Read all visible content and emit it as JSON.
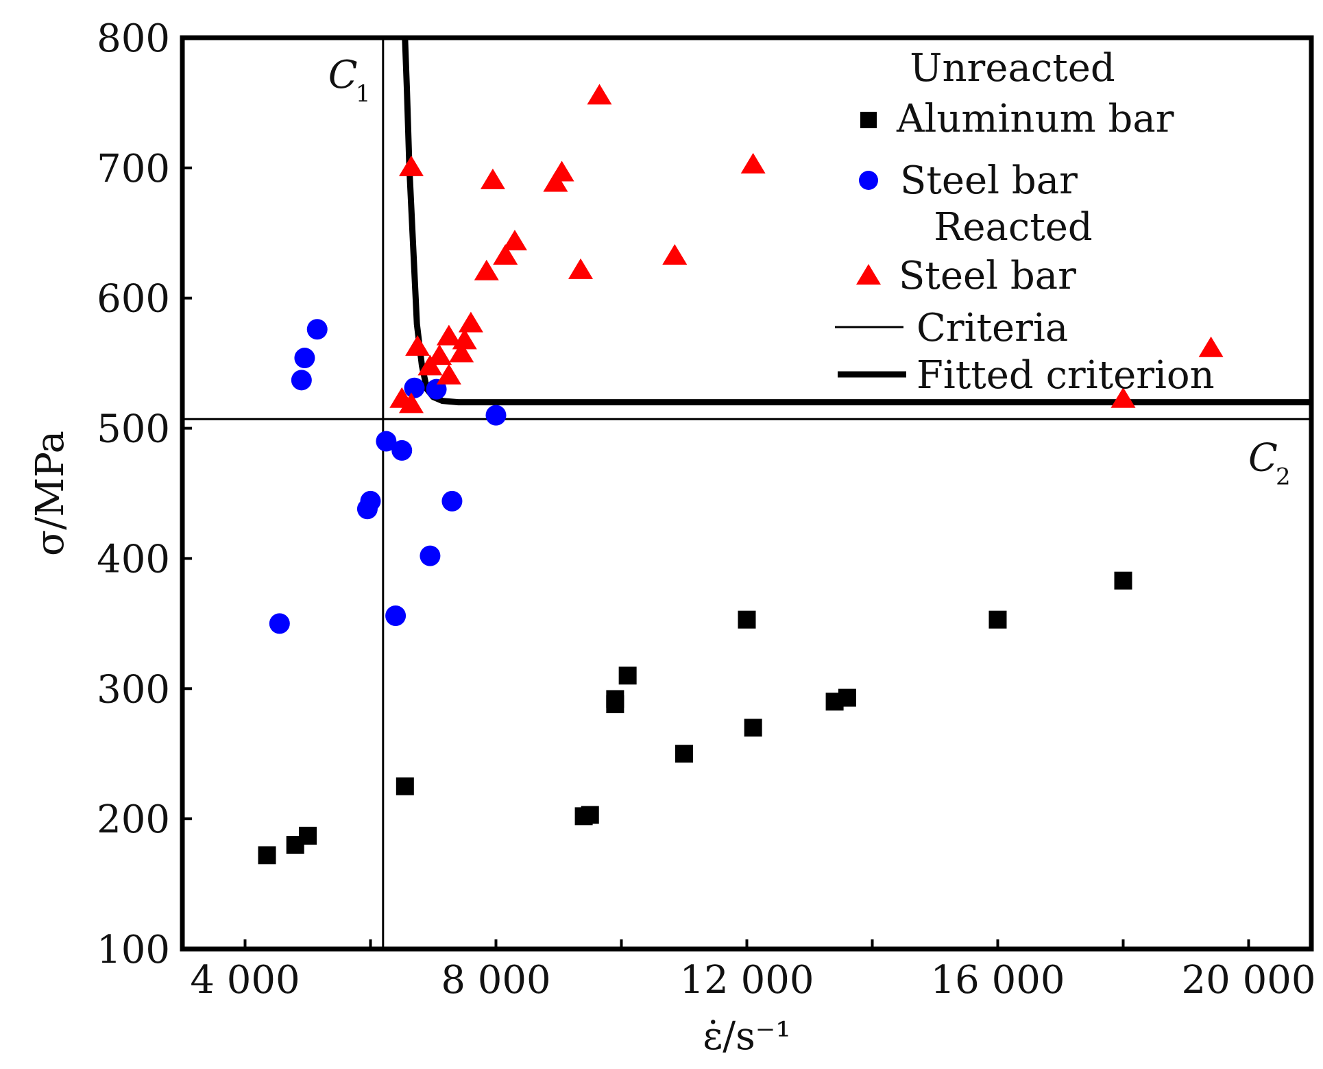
{
  "chart_data": {
    "type": "scatter",
    "xlabel": "ε̇/s⁻¹",
    "ylabel": "σ/MPa",
    "xlim": [
      3000,
      21000
    ],
    "ylim": [
      100,
      800
    ],
    "xticks": [
      4000,
      6000,
      8000,
      10000,
      12000,
      14000,
      16000,
      18000,
      20000
    ],
    "xtick_labels": [
      "4 000",
      "",
      "8 000",
      "",
      "12 000",
      "",
      "16 000",
      "",
      "20 000"
    ],
    "yticks": [
      100,
      200,
      300,
      400,
      500,
      600,
      700,
      800
    ],
    "ytick_labels": [
      "100",
      "200",
      "300",
      "400",
      "500",
      "600",
      "700",
      "800"
    ],
    "grid": false,
    "legend": {
      "position": "top-right",
      "group1_title": "Unreacted",
      "group2_title": "Reacted",
      "aluminum_label": "Aluminum bar",
      "steel_unreacted_label": "Steel bar",
      "steel_reacted_label": "Steel bar",
      "criteria_label": "Criteria",
      "fitted_label": "Fitted criterion"
    },
    "series": [
      {
        "name": "Aluminum bar",
        "group": "Unreacted",
        "marker": "square",
        "color": "#000000",
        "points": [
          [
            4350,
            172
          ],
          [
            4800,
            180
          ],
          [
            5000,
            187
          ],
          [
            6550,
            225
          ],
          [
            9400,
            202
          ],
          [
            9500,
            203
          ],
          [
            9900,
            288
          ],
          [
            9900,
            292
          ],
          [
            10100,
            310
          ],
          [
            11000,
            250
          ],
          [
            12000,
            353
          ],
          [
            12100,
            270
          ],
          [
            13400,
            290
          ],
          [
            13600,
            293
          ],
          [
            16000,
            353
          ],
          [
            18000,
            383
          ]
        ]
      },
      {
        "name": "Steel bar",
        "group": "Unreacted",
        "marker": "circle",
        "color": "#0000ff",
        "points": [
          [
            4550,
            350
          ],
          [
            4900,
            537
          ],
          [
            4950,
            554
          ],
          [
            5150,
            576
          ],
          [
            5950,
            438
          ],
          [
            6000,
            444
          ],
          [
            6250,
            490
          ],
          [
            6400,
            356
          ],
          [
            6500,
            483
          ],
          [
            6700,
            531
          ],
          [
            6950,
            402
          ],
          [
            7050,
            530
          ],
          [
            7300,
            444
          ],
          [
            8000,
            510
          ]
        ]
      },
      {
        "name": "Steel bar",
        "group": "Reacted",
        "marker": "triangle",
        "color": "#ff0000",
        "points": [
          [
            6650,
            700
          ],
          [
            6500,
            522
          ],
          [
            6650,
            518
          ],
          [
            6750,
            562
          ],
          [
            6950,
            547
          ],
          [
            7100,
            555
          ],
          [
            7250,
            540
          ],
          [
            7250,
            570
          ],
          [
            7450,
            557
          ],
          [
            7500,
            567
          ],
          [
            7600,
            580
          ],
          [
            7850,
            620
          ],
          [
            7950,
            690
          ],
          [
            8150,
            632
          ],
          [
            8300,
            643
          ],
          [
            8950,
            688
          ],
          [
            9050,
            696
          ],
          [
            9350,
            621
          ],
          [
            9650,
            755
          ],
          [
            10850,
            632
          ],
          [
            12100,
            702
          ],
          [
            18000,
            522
          ],
          [
            19400,
            561
          ]
        ]
      }
    ],
    "criteria": {
      "vertical_x": 6200,
      "horizontal_y": 507,
      "c1_label": "C",
      "c1_sub": "1",
      "c2_label": "C",
      "c2_sub": "2"
    },
    "fitted_criterion": {
      "points": [
        [
          6550,
          800
        ],
        [
          6580,
          760
        ],
        [
          6620,
          700
        ],
        [
          6680,
          640
        ],
        [
          6740,
          580
        ],
        [
          6820,
          548
        ],
        [
          6900,
          530
        ],
        [
          7000,
          524
        ],
        [
          7150,
          521
        ],
        [
          7400,
          520
        ],
        [
          8000,
          520
        ],
        [
          12000,
          520
        ],
        [
          16000,
          520
        ],
        [
          21000,
          520
        ]
      ]
    },
    "colors": {
      "aluminum": "#000000",
      "steel_unreacted": "#0000ff",
      "steel_reacted": "#ff0000",
      "axes": "#000000"
    }
  }
}
